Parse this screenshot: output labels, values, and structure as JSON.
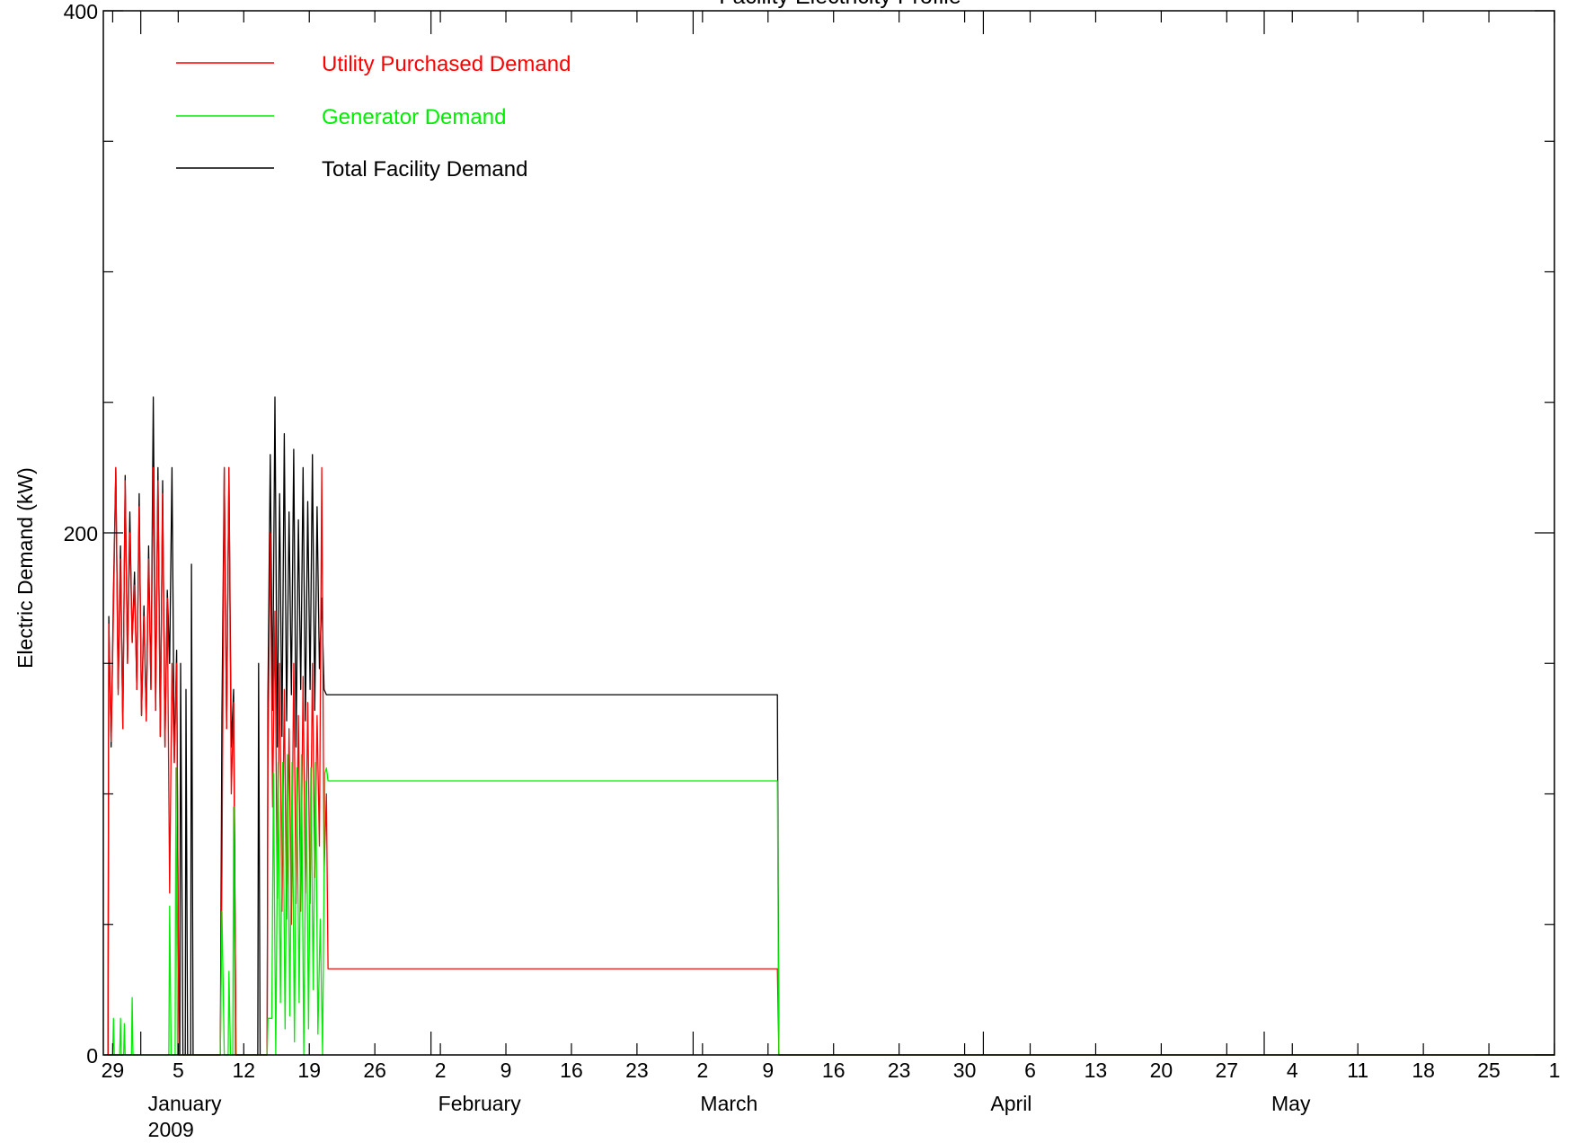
{
  "chart_data": {
    "type": "line",
    "title": "Facility Electricity Profile",
    "ylabel": "Electric Demand (kW)",
    "xlabel": "",
    "ylim": [
      0,
      400
    ],
    "xlim": [
      "2008-12-28",
      "2009-06-01"
    ],
    "grid": false,
    "legend_position": "top-left",
    "y_ticks": [
      {
        "value": 0,
        "label": "0"
      },
      {
        "value": 200,
        "label": "200"
      },
      {
        "value": 400,
        "label": "400"
      }
    ],
    "y_minor_ticks": [
      50,
      100,
      150,
      250,
      300,
      350
    ],
    "x_ticks": [
      {
        "date": "2008-12-29",
        "label": "29"
      },
      {
        "date": "2009-01-05",
        "label": "5"
      },
      {
        "date": "2009-01-12",
        "label": "12"
      },
      {
        "date": "2009-01-19",
        "label": "19"
      },
      {
        "date": "2009-01-26",
        "label": "26"
      },
      {
        "date": "2009-02-02",
        "label": "2"
      },
      {
        "date": "2009-02-09",
        "label": "9"
      },
      {
        "date": "2009-02-16",
        "label": "16"
      },
      {
        "date": "2009-02-23",
        "label": "23"
      },
      {
        "date": "2009-03-02",
        "label": "2"
      },
      {
        "date": "2009-03-09",
        "label": "9"
      },
      {
        "date": "2009-03-16",
        "label": "16"
      },
      {
        "date": "2009-03-23",
        "label": "23"
      },
      {
        "date": "2009-03-30",
        "label": "30"
      },
      {
        "date": "2009-04-06",
        "label": "6"
      },
      {
        "date": "2009-04-13",
        "label": "13"
      },
      {
        "date": "2009-04-20",
        "label": "20"
      },
      {
        "date": "2009-04-27",
        "label": "27"
      },
      {
        "date": "2009-05-04",
        "label": "4"
      },
      {
        "date": "2009-05-11",
        "label": "11"
      },
      {
        "date": "2009-05-18",
        "label": "18"
      },
      {
        "date": "2009-05-25",
        "label": "25"
      },
      {
        "date": "2009-06-01",
        "label": "1"
      }
    ],
    "month_labels": [
      {
        "date": "2009-01-01",
        "label": "January"
      },
      {
        "date": "2009-02-01",
        "label": "February"
      },
      {
        "date": "2009-03-01",
        "label": "March"
      },
      {
        "date": "2009-04-01",
        "label": "April"
      },
      {
        "date": "2009-05-01",
        "label": "May"
      }
    ],
    "year_label": {
      "date": "2009-01-01",
      "label": "2009"
    },
    "series": [
      {
        "name": "Total Facility Demand",
        "color": "#000000",
        "points": [
          [
            "2008-12-28 12:00",
            0
          ],
          [
            "2008-12-28 14:00",
            168
          ],
          [
            "2008-12-28 20:00",
            118
          ],
          [
            "2008-12-29 02:00",
            178
          ],
          [
            "2008-12-29 08:00",
            225
          ],
          [
            "2008-12-29 14:00",
            140
          ],
          [
            "2008-12-29 20:00",
            195
          ],
          [
            "2008-12-30 02:00",
            125
          ],
          [
            "2008-12-30 08:00",
            222
          ],
          [
            "2008-12-30 14:00",
            150
          ],
          [
            "2008-12-30 20:00",
            208
          ],
          [
            "2008-12-31 02:00",
            158
          ],
          [
            "2008-12-31 08:00",
            185
          ],
          [
            "2008-12-31 14:00",
            140
          ],
          [
            "2008-12-31 20:00",
            215
          ],
          [
            "2009-01-01 02:00",
            130
          ],
          [
            "2009-01-01 08:00",
            172
          ],
          [
            "2009-01-01 14:00",
            128
          ],
          [
            "2009-01-01 20:00",
            195
          ],
          [
            "2009-01-02 02:00",
            140
          ],
          [
            "2009-01-02 08:00",
            252
          ],
          [
            "2009-01-02 14:00",
            132
          ],
          [
            "2009-01-02 20:00",
            225
          ],
          [
            "2009-01-03 02:00",
            122
          ],
          [
            "2009-01-03 08:00",
            220
          ],
          [
            "2009-01-03 14:00",
            118
          ],
          [
            "2009-01-03 20:00",
            178
          ],
          [
            "2009-01-04 02:00",
            150
          ],
          [
            "2009-01-04 08:00",
            225
          ],
          [
            "2009-01-04 14:00",
            112
          ],
          [
            "2009-01-04 20:00",
            155
          ],
          [
            "2009-01-05 02:00",
            0
          ],
          [
            "2009-01-05 04:00",
            0
          ],
          [
            "2009-01-05 06:00",
            150
          ],
          [
            "2009-01-05 12:00",
            0
          ],
          [
            "2009-01-05 18:00",
            0
          ],
          [
            "2009-01-05 20:00",
            140
          ],
          [
            "2009-01-06 00:00",
            0
          ],
          [
            "2009-01-06 08:00",
            0
          ],
          [
            "2009-01-06 10:00",
            188
          ],
          [
            "2009-01-06 14:00",
            0
          ],
          [
            "2009-01-09 12:00",
            0
          ],
          [
            "2009-01-09 16:00",
            130
          ],
          [
            "2009-01-09 22:00",
            225
          ],
          [
            "2009-01-10 04:00",
            125
          ],
          [
            "2009-01-10 10:00",
            225
          ],
          [
            "2009-01-10 16:00",
            118
          ],
          [
            "2009-01-10 22:00",
            140
          ],
          [
            "2009-01-11 04:00",
            0
          ],
          [
            "2009-01-13 12:00",
            0
          ],
          [
            "2009-01-13 14:00",
            150
          ],
          [
            "2009-01-13 18:00",
            0
          ],
          [
            "2009-01-14 12:00",
            0
          ],
          [
            "2009-01-14 14:00",
            138
          ],
          [
            "2009-01-14 20:00",
            230
          ],
          [
            "2009-01-15 02:00",
            132
          ],
          [
            "2009-01-15 08:00",
            252
          ],
          [
            "2009-01-15 14:00",
            118
          ],
          [
            "2009-01-15 20:00",
            215
          ],
          [
            "2009-01-16 02:00",
            122
          ],
          [
            "2009-01-16 08:00",
            238
          ],
          [
            "2009-01-16 14:00",
            128
          ],
          [
            "2009-01-16 20:00",
            208
          ],
          [
            "2009-01-17 02:00",
            138
          ],
          [
            "2009-01-17 08:00",
            232
          ],
          [
            "2009-01-17 14:00",
            118
          ],
          [
            "2009-01-17 20:00",
            205
          ],
          [
            "2009-01-18 02:00",
            140
          ],
          [
            "2009-01-18 08:00",
            225
          ],
          [
            "2009-01-18 14:00",
            128
          ],
          [
            "2009-01-18 20:00",
            212
          ],
          [
            "2009-01-19 02:00",
            140
          ],
          [
            "2009-01-19 08:00",
            230
          ],
          [
            "2009-01-19 14:00",
            132
          ],
          [
            "2009-01-19 20:00",
            210
          ],
          [
            "2009-01-20 02:00",
            148
          ],
          [
            "2009-01-20 08:00",
            175
          ],
          [
            "2009-01-20 14:00",
            140
          ],
          [
            "2009-01-20 20:00",
            138
          ],
          [
            "2009-01-21 00:00",
            138
          ],
          [
            "2009-03-10 00:00",
            138
          ],
          [
            "2009-03-10 04:00",
            0
          ],
          [
            "2009-06-01 00:00",
            0
          ]
        ]
      },
      {
        "name": "Utility Purchased Demand",
        "color": "#ff0000",
        "points": [
          [
            "2008-12-28 12:00",
            0
          ],
          [
            "2008-12-28 14:00",
            165
          ],
          [
            "2008-12-28 20:00",
            120
          ],
          [
            "2008-12-29 02:00",
            170
          ],
          [
            "2008-12-29 08:00",
            225
          ],
          [
            "2008-12-29 14:00",
            138
          ],
          [
            "2008-12-29 20:00",
            190
          ],
          [
            "2008-12-30 02:00",
            125
          ],
          [
            "2008-12-30 08:00",
            220
          ],
          [
            "2008-12-30 14:00",
            150
          ],
          [
            "2008-12-30 20:00",
            200
          ],
          [
            "2008-12-31 02:00",
            158
          ],
          [
            "2008-12-31 08:00",
            180
          ],
          [
            "2008-12-31 14:00",
            140
          ],
          [
            "2008-12-31 20:00",
            210
          ],
          [
            "2009-01-01 02:00",
            130
          ],
          [
            "2009-01-01 08:00",
            168
          ],
          [
            "2009-01-01 14:00",
            128
          ],
          [
            "2009-01-01 20:00",
            190
          ],
          [
            "2009-01-02 02:00",
            140
          ],
          [
            "2009-01-02 08:00",
            225
          ],
          [
            "2009-01-02 14:00",
            132
          ],
          [
            "2009-01-02 20:00",
            220
          ],
          [
            "2009-01-03 02:00",
            122
          ],
          [
            "2009-01-03 08:00",
            215
          ],
          [
            "2009-01-03 14:00",
            118
          ],
          [
            "2009-01-03 20:00",
            175
          ],
          [
            "2009-01-04 02:00",
            62
          ],
          [
            "2009-01-04 08:00",
            150
          ],
          [
            "2009-01-04 14:00",
            112
          ],
          [
            "2009-01-04 20:00",
            150
          ],
          [
            "2009-01-05 02:00",
            0
          ],
          [
            "2009-01-09 12:00",
            0
          ],
          [
            "2009-01-09 16:00",
            70
          ],
          [
            "2009-01-09 22:00",
            225
          ],
          [
            "2009-01-10 04:00",
            125
          ],
          [
            "2009-01-10 10:00",
            225
          ],
          [
            "2009-01-10 16:00",
            100
          ],
          [
            "2009-01-10 22:00",
            135
          ],
          [
            "2009-01-11 04:00",
            0
          ],
          [
            "2009-01-14 12:00",
            0
          ],
          [
            "2009-01-14 14:00",
            110
          ],
          [
            "2009-01-14 20:00",
            200
          ],
          [
            "2009-01-15 02:00",
            95
          ],
          [
            "2009-01-15 08:00",
            170
          ],
          [
            "2009-01-15 14:00",
            60
          ],
          [
            "2009-01-15 20:00",
            150
          ],
          [
            "2009-01-16 02:00",
            55
          ],
          [
            "2009-01-16 08:00",
            140
          ],
          [
            "2009-01-16 14:00",
            52
          ],
          [
            "2009-01-16 20:00",
            125
          ],
          [
            "2009-01-17 02:00",
            50
          ],
          [
            "2009-01-17 08:00",
            150
          ],
          [
            "2009-01-17 14:00",
            58
          ],
          [
            "2009-01-17 20:00",
            130
          ],
          [
            "2009-01-18 02:00",
            55
          ],
          [
            "2009-01-18 08:00",
            145
          ],
          [
            "2009-01-18 14:00",
            62
          ],
          [
            "2009-01-18 20:00",
            135
          ],
          [
            "2009-01-19 02:00",
            58
          ],
          [
            "2009-01-19 08:00",
            150
          ],
          [
            "2009-01-19 14:00",
            68
          ],
          [
            "2009-01-19 20:00",
            130
          ],
          [
            "2009-01-20 02:00",
            80
          ],
          [
            "2009-01-20 08:00",
            225
          ],
          [
            "2009-01-20 14:00",
            70
          ],
          [
            "2009-01-20 20:00",
            100
          ],
          [
            "2009-01-21 00:00",
            33
          ],
          [
            "2009-03-10 00:00",
            33
          ],
          [
            "2009-03-10 04:00",
            0
          ],
          [
            "2009-06-01 00:00",
            0
          ]
        ]
      },
      {
        "name": "Generator Demand",
        "color": "#00ee00",
        "points": [
          [
            "2008-12-28 12:00",
            0
          ],
          [
            "2008-12-29 00:00",
            0
          ],
          [
            "2008-12-29 02:00",
            14
          ],
          [
            "2008-12-29 04:00",
            0
          ],
          [
            "2008-12-29 18:00",
            0
          ],
          [
            "2008-12-29 20:00",
            14
          ],
          [
            "2008-12-29 22:00",
            0
          ],
          [
            "2008-12-30 04:00",
            0
          ],
          [
            "2008-12-30 06:00",
            12
          ],
          [
            "2008-12-30 08:00",
            0
          ],
          [
            "2008-12-31 00:00",
            0
          ],
          [
            "2008-12-31 02:00",
            22
          ],
          [
            "2008-12-31 04:00",
            0
          ],
          [
            "2009-01-04 00:00",
            0
          ],
          [
            "2009-01-04 02:00",
            57
          ],
          [
            "2009-01-04 06:00",
            0
          ],
          [
            "2009-01-04 16:00",
            0
          ],
          [
            "2009-01-04 18:00",
            110
          ],
          [
            "2009-01-04 22:00",
            0
          ],
          [
            "2009-01-09 12:00",
            0
          ],
          [
            "2009-01-09 16:00",
            55
          ],
          [
            "2009-01-09 22:00",
            0
          ],
          [
            "2009-01-10 08:00",
            0
          ],
          [
            "2009-01-10 10:00",
            32
          ],
          [
            "2009-01-10 14:00",
            0
          ],
          [
            "2009-01-10 20:00",
            0
          ],
          [
            "2009-01-10 22:00",
            95
          ],
          [
            "2009-01-11 02:00",
            0
          ],
          [
            "2009-01-14 12:00",
            0
          ],
          [
            "2009-01-14 14:00",
            14
          ],
          [
            "2009-01-15 00:00",
            14
          ],
          [
            "2009-01-15 04:00",
            108
          ],
          [
            "2009-01-15 10:00",
            0
          ],
          [
            "2009-01-15 16:00",
            112
          ],
          [
            "2009-01-15 22:00",
            20
          ],
          [
            "2009-01-16 04:00",
            112
          ],
          [
            "2009-01-16 10:00",
            10
          ],
          [
            "2009-01-16 16:00",
            115
          ],
          [
            "2009-01-16 22:00",
            15
          ],
          [
            "2009-01-17 04:00",
            112
          ],
          [
            "2009-01-17 10:00",
            5
          ],
          [
            "2009-01-17 16:00",
            110
          ],
          [
            "2009-01-17 22:00",
            20
          ],
          [
            "2009-01-18 04:00",
            115
          ],
          [
            "2009-01-18 10:00",
            0
          ],
          [
            "2009-01-18 16:00",
            105
          ],
          [
            "2009-01-18 22:00",
            10
          ],
          [
            "2009-01-19 04:00",
            110
          ],
          [
            "2009-01-19 10:00",
            25
          ],
          [
            "2009-01-19 16:00",
            112
          ],
          [
            "2009-01-19 22:00",
            8
          ],
          [
            "2009-01-20 04:00",
            52
          ],
          [
            "2009-01-20 10:00",
            0
          ],
          [
            "2009-01-20 16:00",
            108
          ],
          [
            "2009-01-20 20:00",
            110
          ],
          [
            "2009-01-21 00:00",
            105
          ],
          [
            "2009-03-10 00:00",
            105
          ],
          [
            "2009-03-10 04:00",
            0
          ],
          [
            "2009-06-01 00:00",
            0
          ]
        ]
      }
    ],
    "legend": [
      {
        "label": "Utility Purchased Demand",
        "color": "#ff0000"
      },
      {
        "label": "Generator Demand",
        "color": "#00ee00"
      },
      {
        "label": "Total Facility Demand",
        "color": "#000000"
      }
    ]
  }
}
